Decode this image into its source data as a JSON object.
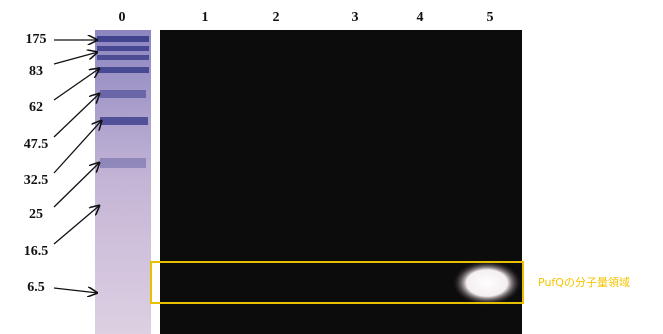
{
  "lanes": [
    "0",
    "1",
    "2",
    "3",
    "4",
    "5"
  ],
  "markers": [
    "175",
    "83",
    "62",
    "47.5",
    "32.5",
    "25",
    "16.5",
    "6.5"
  ],
  "annotation": "PufQの分子量領域"
}
